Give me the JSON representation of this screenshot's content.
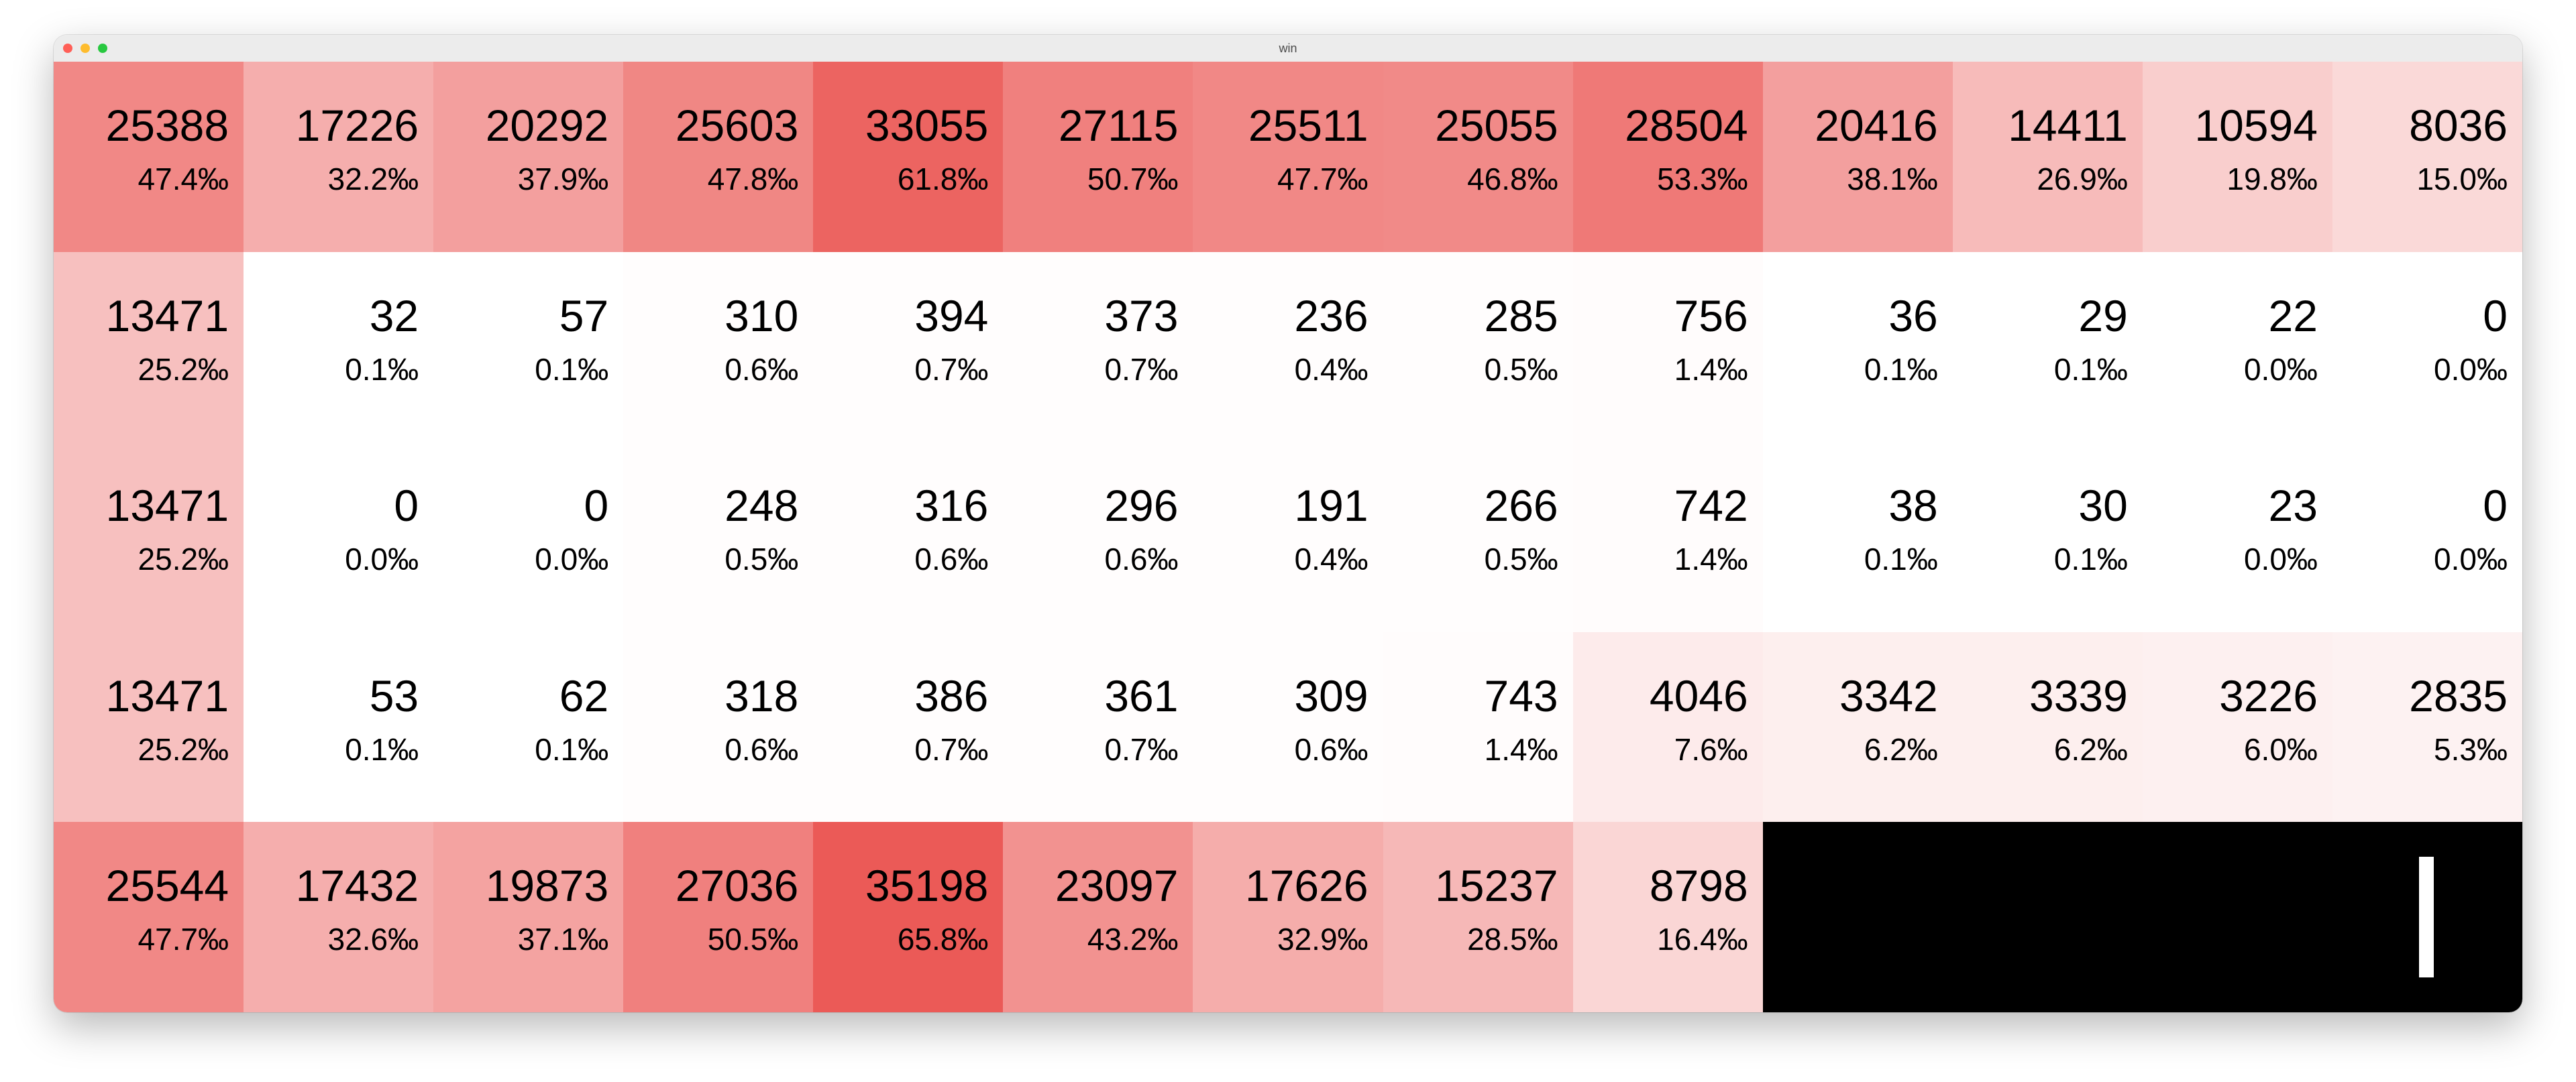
{
  "window": {
    "title": "win"
  },
  "table": {
    "rows": [
      [
        {
          "value": "25388",
          "pct": "47.4‰",
          "level": 0.72
        },
        {
          "value": "17226",
          "pct": "32.2‰",
          "level": 0.49
        },
        {
          "value": "20292",
          "pct": "37.9‰",
          "level": 0.58
        },
        {
          "value": "25603",
          "pct": "47.8‰",
          "level": 0.73
        },
        {
          "value": "33055",
          "pct": "61.8‰",
          "level": 0.94
        },
        {
          "value": "27115",
          "pct": "50.7‰",
          "level": 0.77
        },
        {
          "value": "25511",
          "pct": "47.7‰",
          "level": 0.72
        },
        {
          "value": "25055",
          "pct": "46.8‰",
          "level": 0.71
        },
        {
          "value": "28504",
          "pct": "53.3‰",
          "level": 0.81
        },
        {
          "value": "20416",
          "pct": "38.1‰",
          "level": 0.58
        },
        {
          "value": "14411",
          "pct": "26.9‰",
          "level": 0.41
        },
        {
          "value": "10594",
          "pct": "19.8‰",
          "level": 0.3
        },
        {
          "value": "8036",
          "pct": "15.0‰",
          "level": 0.23
        }
      ],
      [
        {
          "value": "13471",
          "pct": "25.2‰",
          "level": 0.38
        },
        {
          "value": "32",
          "pct": "0.1‰",
          "level": 0.0
        },
        {
          "value": "57",
          "pct": "0.1‰",
          "level": 0.0
        },
        {
          "value": "310",
          "pct": "0.6‰",
          "level": 0.01
        },
        {
          "value": "394",
          "pct": "0.7‰",
          "level": 0.01
        },
        {
          "value": "373",
          "pct": "0.7‰",
          "level": 0.01
        },
        {
          "value": "236",
          "pct": "0.4‰",
          "level": 0.01
        },
        {
          "value": "285",
          "pct": "0.5‰",
          "level": 0.01
        },
        {
          "value": "756",
          "pct": "1.4‰",
          "level": 0.02
        },
        {
          "value": "36",
          "pct": "0.1‰",
          "level": 0.0
        },
        {
          "value": "29",
          "pct": "0.1‰",
          "level": 0.0
        },
        {
          "value": "22",
          "pct": "0.0‰",
          "level": 0.0
        },
        {
          "value": "0",
          "pct": "0.0‰",
          "level": 0.0
        }
      ],
      [
        {
          "value": "13471",
          "pct": "25.2‰",
          "level": 0.38
        },
        {
          "value": "0",
          "pct": "0.0‰",
          "level": 0.0
        },
        {
          "value": "0",
          "pct": "0.0‰",
          "level": 0.0
        },
        {
          "value": "248",
          "pct": "0.5‰",
          "level": 0.01
        },
        {
          "value": "316",
          "pct": "0.6‰",
          "level": 0.01
        },
        {
          "value": "296",
          "pct": "0.6‰",
          "level": 0.01
        },
        {
          "value": "191",
          "pct": "0.4‰",
          "level": 0.01
        },
        {
          "value": "266",
          "pct": "0.5‰",
          "level": 0.01
        },
        {
          "value": "742",
          "pct": "1.4‰",
          "level": 0.02
        },
        {
          "value": "38",
          "pct": "0.1‰",
          "level": 0.0
        },
        {
          "value": "30",
          "pct": "0.1‰",
          "level": 0.0
        },
        {
          "value": "23",
          "pct": "0.0‰",
          "level": 0.0
        },
        {
          "value": "0",
          "pct": "0.0‰",
          "level": 0.0
        }
      ],
      [
        {
          "value": "13471",
          "pct": "25.2‰",
          "level": 0.38
        },
        {
          "value": "53",
          "pct": "0.1‰",
          "level": 0.0
        },
        {
          "value": "62",
          "pct": "0.1‰",
          "level": 0.0
        },
        {
          "value": "318",
          "pct": "0.6‰",
          "level": 0.01
        },
        {
          "value": "386",
          "pct": "0.7‰",
          "level": 0.01
        },
        {
          "value": "361",
          "pct": "0.7‰",
          "level": 0.01
        },
        {
          "value": "309",
          "pct": "0.6‰",
          "level": 0.01
        },
        {
          "value": "743",
          "pct": "1.4‰",
          "level": 0.02
        },
        {
          "value": "4046",
          "pct": "7.6‰",
          "level": 0.12
        },
        {
          "value": "3342",
          "pct": "6.2‰",
          "level": 0.1
        },
        {
          "value": "3339",
          "pct": "6.2‰",
          "level": 0.1
        },
        {
          "value": "3226",
          "pct": "6.0‰",
          "level": 0.09
        },
        {
          "value": "2835",
          "pct": "5.3‰",
          "level": 0.08
        }
      ],
      [
        {
          "value": "25544",
          "pct": "47.7‰",
          "level": 0.72
        },
        {
          "value": "17432",
          "pct": "32.6‰",
          "level": 0.49
        },
        {
          "value": "19873",
          "pct": "37.1‰",
          "level": 0.56
        },
        {
          "value": "27036",
          "pct": "50.5‰",
          "level": 0.77
        },
        {
          "value": "35198",
          "pct": "65.8‰",
          "level": 1.0
        },
        {
          "value": "23097",
          "pct": "43.2‰",
          "level": 0.66
        },
        {
          "value": "17626",
          "pct": "32.9‰",
          "level": 0.5
        },
        {
          "value": "15237",
          "pct": "28.5‰",
          "level": 0.43
        },
        {
          "value": "8798",
          "pct": "16.4‰",
          "level": 0.25
        }
      ]
    ]
  },
  "colors": {
    "heat_max": "#eb5a57",
    "heat_min": "#ffffff",
    "cursor_block": "#000000",
    "cursor_bar": "#ffffff"
  }
}
